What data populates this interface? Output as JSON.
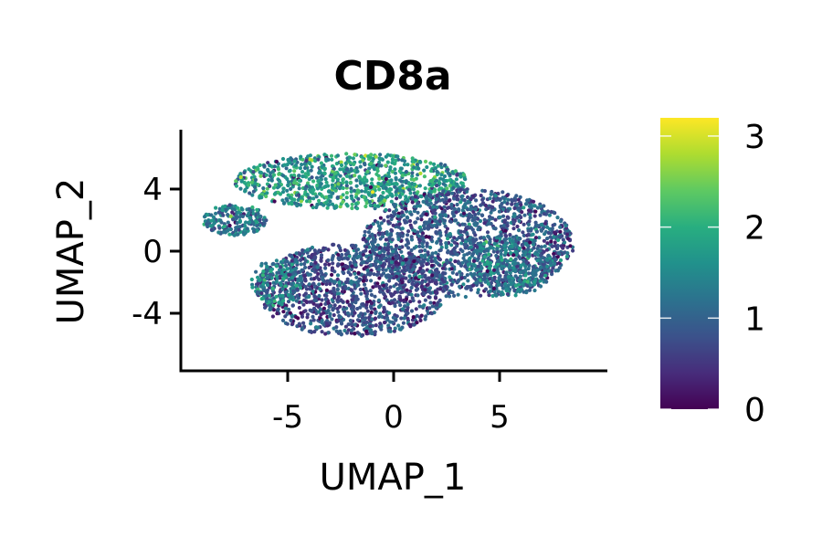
{
  "chart_data": {
    "type": "scatter",
    "title": "CD8a",
    "xlabel": "UMAP_1",
    "ylabel": "UMAP_2",
    "xlim": [
      -10,
      10
    ],
    "ylim": [
      -8,
      8
    ],
    "xticks": [
      -5,
      0,
      5
    ],
    "yticks": [
      4,
      0,
      -4
    ],
    "xtick_labels": [
      "-5",
      "0",
      "5"
    ],
    "ytick_labels": [
      "4",
      "0",
      "-4"
    ],
    "grid": false,
    "colormap": "viridis",
    "colorbar": {
      "range": [
        0,
        3.2
      ],
      "ticks": [
        0,
        1,
        2,
        3
      ],
      "tick_labels": [
        "0",
        "1",
        "2",
        "3"
      ],
      "placement": "right"
    },
    "clusters": [
      {
        "cx": -2.0,
        "cy": 4.5,
        "rx": 5.5,
        "ry": 1.8,
        "n": 900,
        "mean_expr": 1.7,
        "spread": 0.45
      },
      {
        "cx": -7.5,
        "cy": 2.0,
        "rx": 1.5,
        "ry": 1.0,
        "n": 200,
        "mean_expr": 1.3,
        "spread": 0.4
      },
      {
        "cx": 3.5,
        "cy": 0.5,
        "rx": 5.0,
        "ry": 3.5,
        "n": 1500,
        "mean_expr": 0.9,
        "spread": 0.35
      },
      {
        "cx": -2.0,
        "cy": -2.5,
        "rx": 4.5,
        "ry": 3.0,
        "n": 1200,
        "mean_expr": 0.75,
        "spread": 0.35
      },
      {
        "cx": -5.5,
        "cy": -2.0,
        "rx": 1.2,
        "ry": 1.5,
        "n": 150,
        "mean_expr": 1.4,
        "spread": 0.4
      },
      {
        "cx": 5.5,
        "cy": -1.0,
        "rx": 2.0,
        "ry": 2.0,
        "n": 300,
        "mean_expr": 1.3,
        "spread": 0.35
      }
    ]
  }
}
